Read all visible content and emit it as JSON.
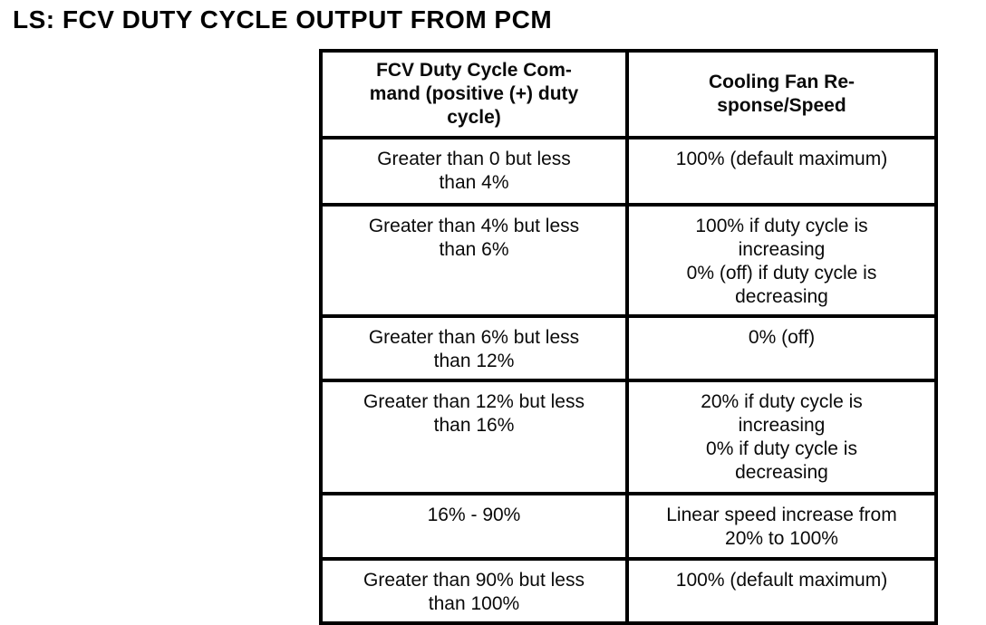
{
  "page": {
    "title": "LS: FCV DUTY CYCLE OUTPUT FROM PCM"
  },
  "table": {
    "headers": [
      "FCV Duty Cycle Com-\nmand (positive (+) duty\ncycle)",
      "Cooling Fan Re-\nsponse/Speed"
    ],
    "rows": [
      {
        "command": "Greater than 0 but less\nthan 4%",
        "response": "100% (default maximum)"
      },
      {
        "command": "Greater than 4% but less\nthan 6%",
        "response": "100% if duty cycle is\nincreasing\n0% (off) if duty cycle is\ndecreasing"
      },
      {
        "command": "Greater than 6% but less\nthan 12%",
        "response": "0% (off)"
      },
      {
        "command": "Greater than 12% but less\nthan 16%",
        "response": "20% if duty cycle is\nincreasing\n0% if duty cycle is\ndecreasing"
      },
      {
        "command": "16% - 90%",
        "response": "Linear speed increase from\n20% to 100%"
      },
      {
        "command": "Greater than 90% but less\nthan 100%",
        "response": "100% (default maximum)"
      }
    ]
  }
}
